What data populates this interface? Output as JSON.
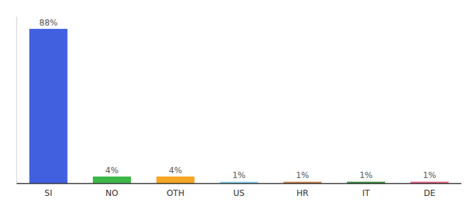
{
  "chart_data": {
    "type": "bar",
    "categories": [
      "SI",
      "NO",
      "OTH",
      "US",
      "HR",
      "IT",
      "DE"
    ],
    "values": [
      88,
      4,
      4,
      1,
      1,
      1,
      1
    ],
    "value_labels": [
      "88%",
      "4%",
      "4%",
      "1%",
      "1%",
      "1%",
      "1%"
    ],
    "colors": [
      "#4060e0",
      "#3cb84a",
      "#f5a623",
      "#7ecef5",
      "#c87941",
      "#2e8b3a",
      "#e8547a"
    ],
    "ylim": [
      0,
      95
    ],
    "data_labels": true,
    "tick_labels": "x"
  }
}
